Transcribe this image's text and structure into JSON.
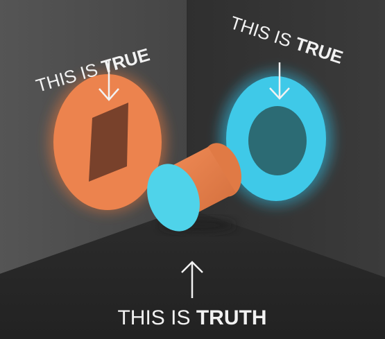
{
  "labels": {
    "left": {
      "prefix": "THIS IS ",
      "emphasis": "TRUE"
    },
    "right": {
      "prefix": "THIS IS ",
      "emphasis": "TRUE"
    },
    "bottom": {
      "prefix": "THIS IS ",
      "emphasis": "TRUTH"
    }
  },
  "colors": {
    "wall_left": "#4a4a4a",
    "wall_right": "#3a3a3a",
    "floor": "#2a2a2a",
    "orange": "#e8804a",
    "orange_glow": "#f08a52",
    "orange_shadow": "#6b3a28",
    "cyan": "#4fd3ea",
    "cyan_glow": "#3cc8e6",
    "cyan_shadow": "#2c6b74",
    "text": "#f2f2f2"
  },
  "shapes": {
    "left_wall_projection": "rectangle",
    "right_wall_projection": "circle",
    "object": "cylinder"
  }
}
